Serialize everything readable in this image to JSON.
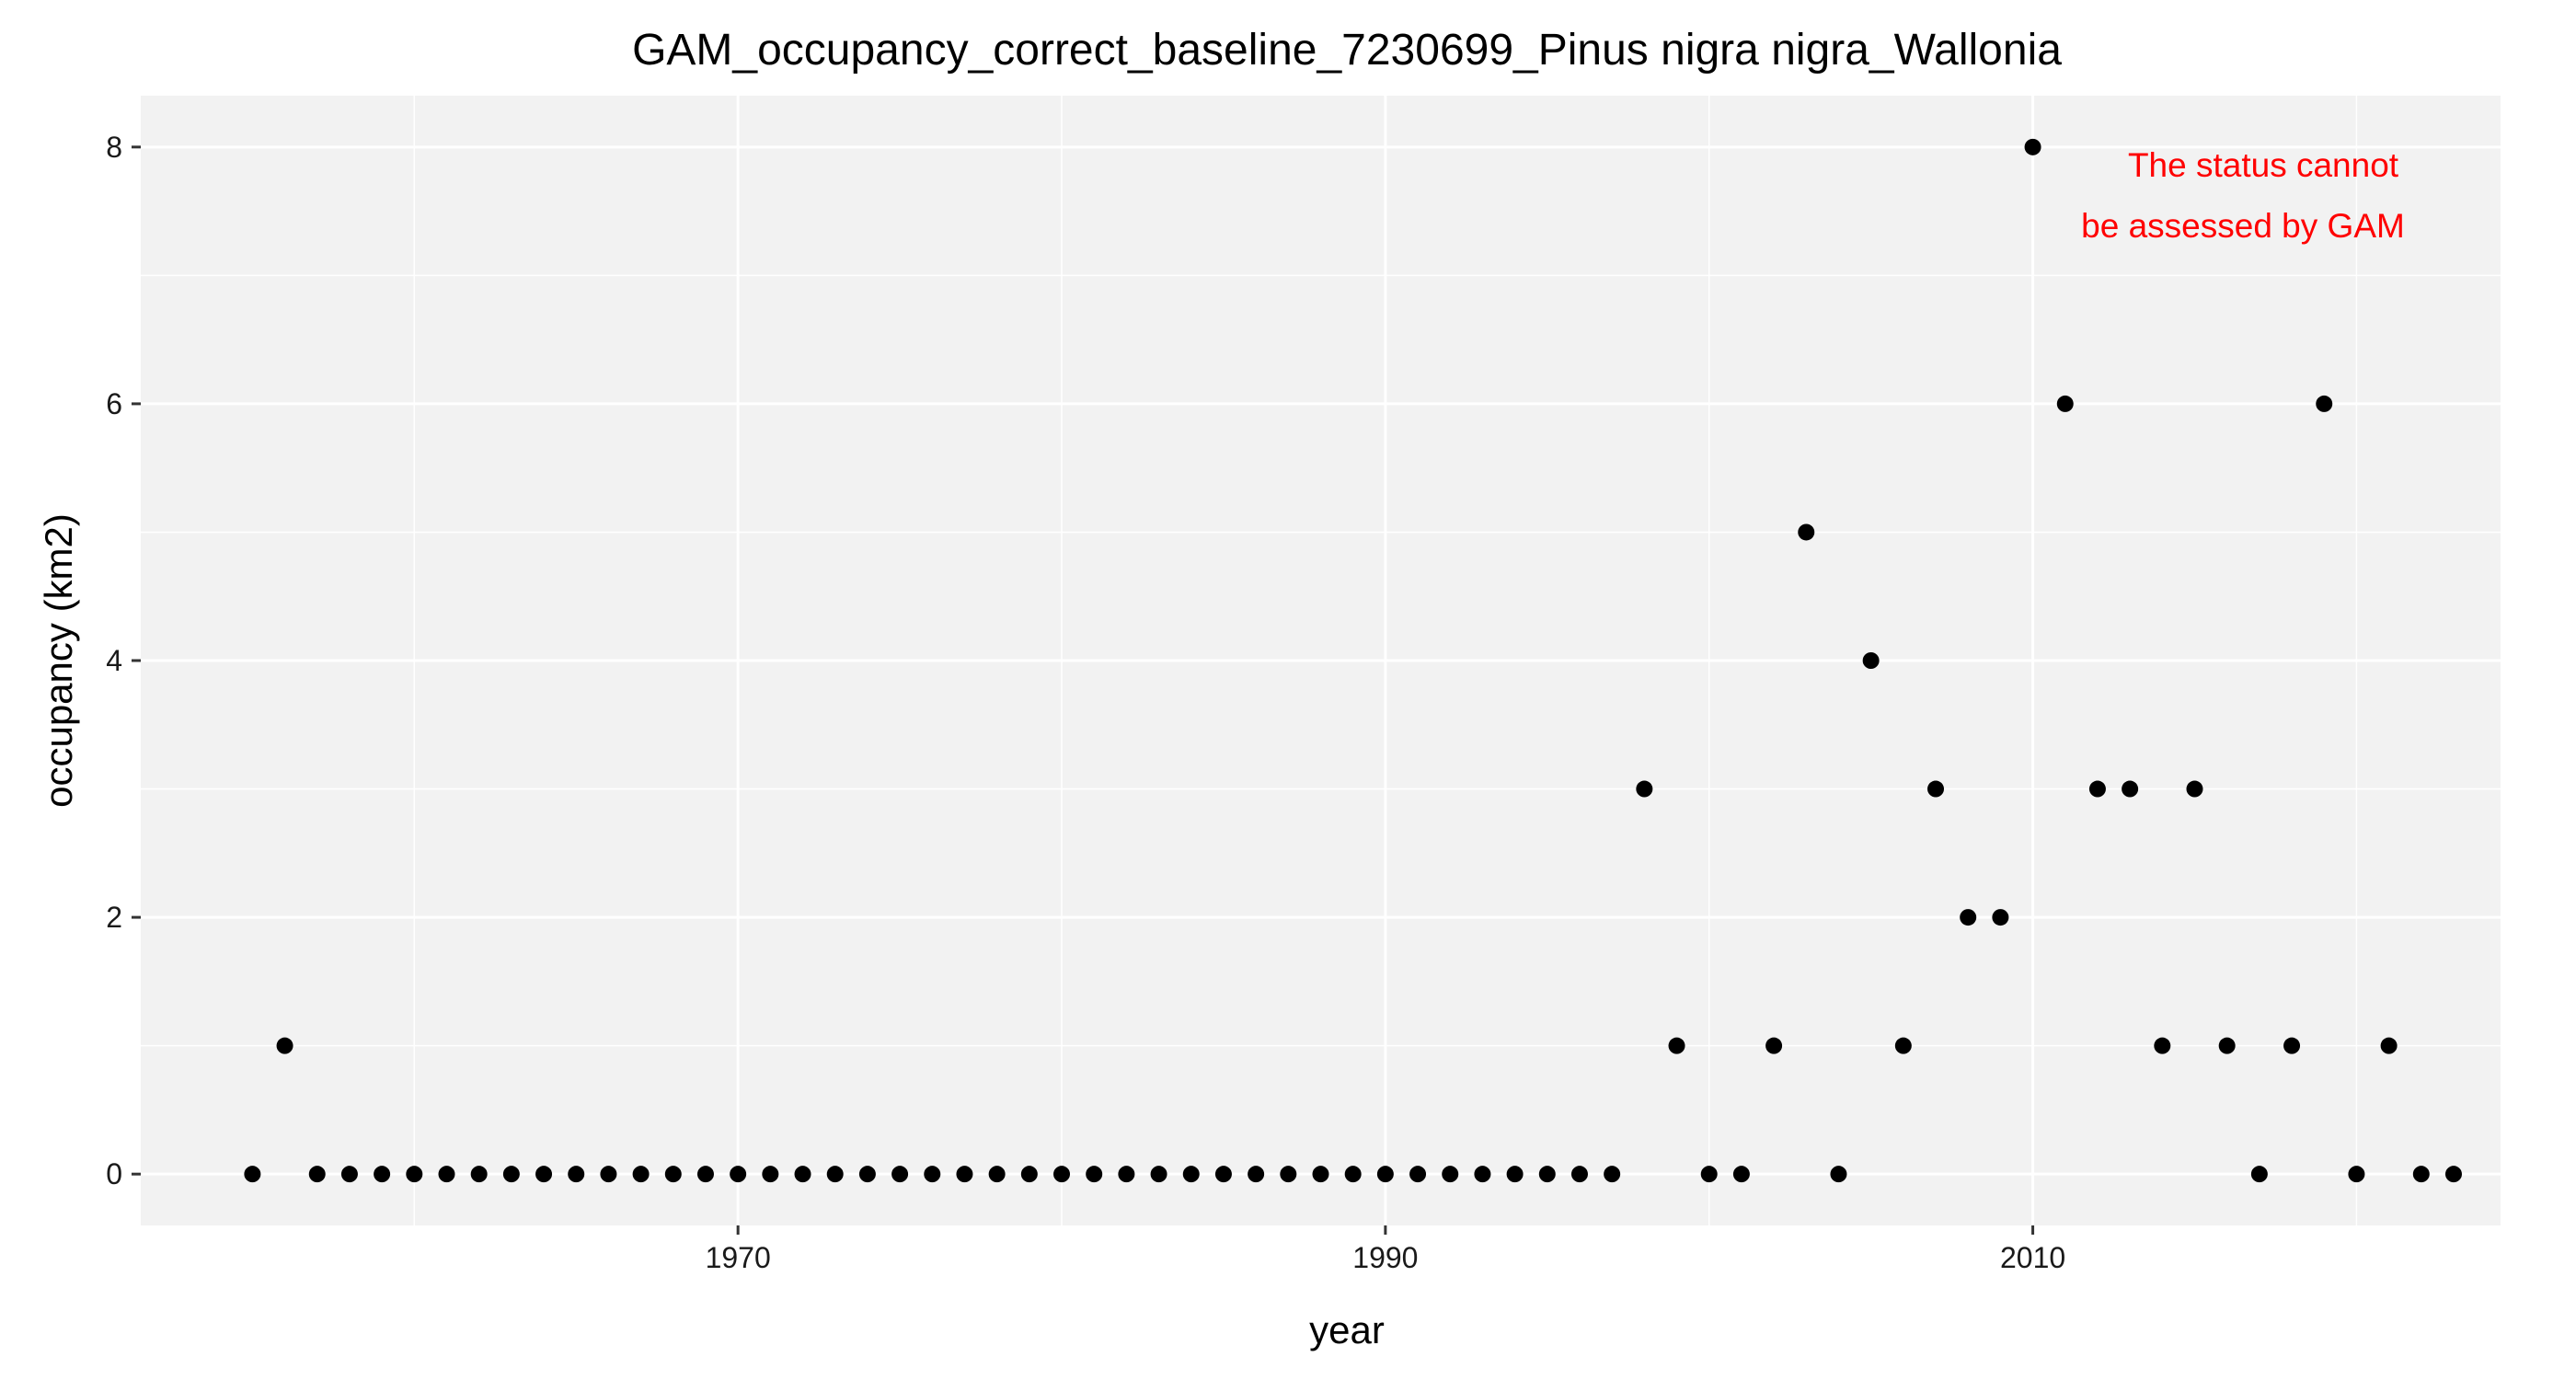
{
  "chart_data": {
    "type": "scatter",
    "title": "GAM_occupancy_correct_baseline_7230699_Pinus nigra nigra_Wallonia",
    "xlabel": "year",
    "ylabel": "occupancy (km2)",
    "xlim": [
      1951.55,
      2024.45
    ],
    "ylim": [
      -0.4,
      8.4
    ],
    "x_ticks": [
      1970,
      1990,
      2010
    ],
    "y_ticks": [
      0,
      2,
      4,
      6,
      8
    ],
    "grid": true,
    "background": "#f2f2f2",
    "point_color": "#000000",
    "annotation": {
      "lines": [
        "The status cannot",
        "be assessed by GAM"
      ],
      "color": "#ff0000"
    },
    "x": [
      1955,
      1956,
      1957,
      1958,
      1959,
      1960,
      1961,
      1962,
      1963,
      1964,
      1965,
      1966,
      1967,
      1968,
      1969,
      1970,
      1971,
      1972,
      1973,
      1974,
      1975,
      1976,
      1977,
      1978,
      1979,
      1980,
      1981,
      1982,
      1983,
      1984,
      1985,
      1986,
      1987,
      1988,
      1989,
      1990,
      1991,
      1992,
      1993,
      1994,
      1995,
      1996,
      1997,
      1998,
      1999,
      2000,
      2001,
      2002,
      2003,
      2004,
      2005,
      2006,
      2007,
      2008,
      2009,
      2010,
      2011,
      2012,
      2013,
      2014,
      2015,
      2016,
      2017,
      2018,
      2019,
      2020,
      2021,
      2022,
      2023
    ],
    "y": [
      0,
      1,
      0,
      0,
      0,
      0,
      0,
      0,
      0,
      0,
      0,
      0,
      0,
      0,
      0,
      0,
      0,
      0,
      0,
      0,
      0,
      0,
      0,
      0,
      0,
      0,
      0,
      0,
      0,
      0,
      0,
      0,
      0,
      0,
      0,
      0,
      0,
      0,
      0,
      0,
      0,
      0,
      0,
      3,
      1,
      0,
      0,
      1,
      5,
      0,
      4,
      1,
      3,
      2,
      2,
      8,
      6,
      3,
      3,
      1,
      3,
      1,
      0,
      1,
      6,
      0,
      1,
      0,
      0
    ]
  }
}
